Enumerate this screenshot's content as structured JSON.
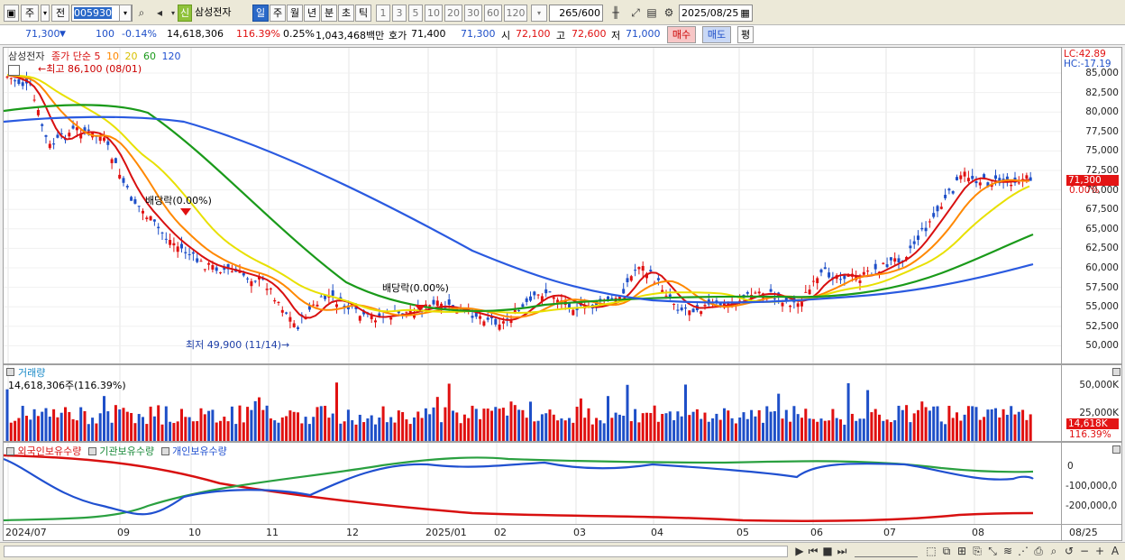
{
  "toolbar": {
    "period_prefix": "주",
    "period_mode": "전",
    "code": "005930",
    "stock_badge": "신",
    "stock_name": "삼성전자",
    "units": [
      "일",
      "주",
      "월",
      "년",
      "분",
      "초",
      "틱"
    ],
    "active_unit": "일",
    "numbers": [
      "1",
      "3",
      "5",
      "10",
      "20",
      "30",
      "60",
      "120"
    ],
    "count": "265",
    "total": "/600",
    "date": "2025/08/25"
  },
  "quote": {
    "price": "71,300",
    "change": "100",
    "change_pct": "-0.14%",
    "volume": "14,618,306",
    "volume_ratio": "116.39%",
    "turnover": "0.25%",
    "amount": "1,043,468백만",
    "ask_label": "호가",
    "ask": "71,400",
    "bid": "71,300",
    "open_label": "시",
    "open": "72,100",
    "high_label": "고",
    "high": "72,600",
    "low_label": "저",
    "low": "71,000",
    "buy_label": "매수",
    "sell_label": "매도",
    "avg_label": "평"
  },
  "price_panel": {
    "name": "삼성전자",
    "legend_prefix": "종가 단순",
    "ma_periods": [
      "5",
      "10",
      "20",
      "60",
      "120"
    ],
    "ma_colors": [
      "#d81010",
      "#ff8800",
      "#e8d000",
      "#1a9a1a",
      "#2050d0"
    ],
    "high_note": "최고 86,100 (08/01)",
    "low_note": "최저 49,900 (11/14)",
    "dividend1": "배당락(0.00%)",
    "dividend2": "배당락(0.00%)",
    "lc": "LC:42.89",
    "hc": "HC:-17.19",
    "y_ticks": [
      "85,000",
      "82,500",
      "80,000",
      "77,500",
      "75,000",
      "72,500",
      "70,000",
      "67,500",
      "65,000",
      "62,500",
      "60,000",
      "57,500",
      "55,000",
      "52,500",
      "50,000"
    ],
    "last_value": "71,300",
    "last_pct": "0.00%"
  },
  "volume_panel": {
    "title": "거래량",
    "value": "14,618,306주(116.39%)",
    "y_ticks": [
      "50,000K",
      "25,000K"
    ],
    "last_value": "14,618K",
    "last_pct": "116.39%"
  },
  "holdings_panel": {
    "series": [
      "외국인보유수량",
      "기관보유수량",
      "개인보유수량"
    ],
    "colors": [
      "#d81010",
      "#1a9a3a",
      "#2050d0"
    ],
    "y_ticks": [
      "0",
      "-100,000,0",
      "-200,000,0"
    ]
  },
  "x_axis": {
    "labels": [
      "2024/07",
      "09",
      "10",
      "11",
      "12",
      "2025/01",
      "02",
      "03",
      "04",
      "05",
      "06",
      "07",
      "08"
    ],
    "right_label": "08/25"
  }
}
